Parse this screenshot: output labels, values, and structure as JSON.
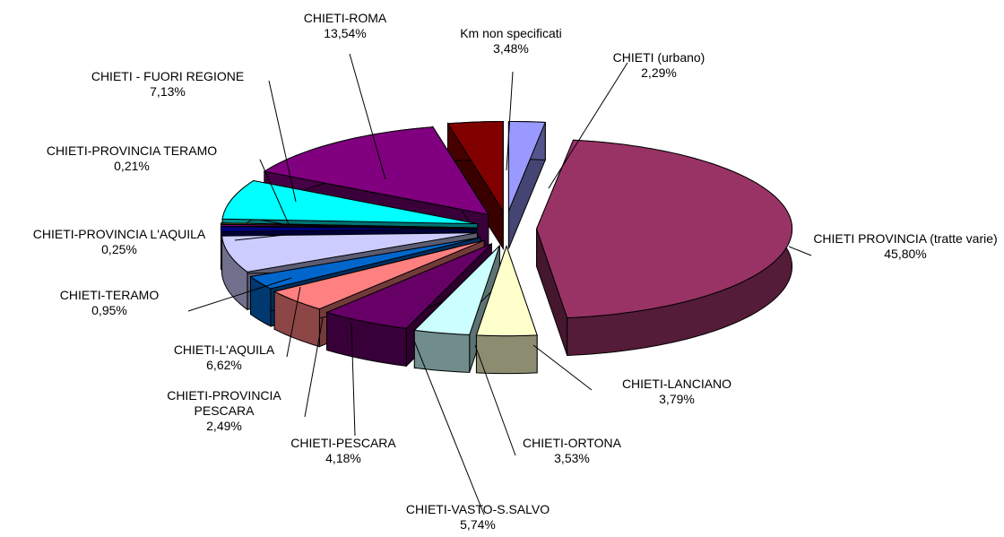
{
  "chart_data": {
    "type": "pie3d",
    "categories": [
      "CHIETI (urbano)",
      "CHIETI PROVINCIA (tratte varie)",
      "CHIETI-LANCIANO",
      "CHIETI-ORTONA",
      "CHIETI-VASTO-S.SALVO",
      "CHIETI-PESCARA",
      "CHIETI-PROVINCIA PESCARA",
      "CHIETI-L'AQUILA",
      "CHIETI-TERAMO",
      "CHIETI-PROVINCIA L'AQUILA",
      "CHIETI-PROVINCIA TERAMO",
      "CHIETI - FUORI REGIONE",
      "CHIETI-ROMA",
      "Km non specificati"
    ],
    "values": [
      2.29,
      45.8,
      3.79,
      3.53,
      5.74,
      4.18,
      2.49,
      6.62,
      0.95,
      0.25,
      0.21,
      7.13,
      13.54,
      3.48
    ],
    "value_labels": [
      "2,29%",
      "45,80%",
      "3,79%",
      "3,53%",
      "5,74%",
      "4,18%",
      "2,49%",
      "6,62%",
      "0,95%",
      "0,25%",
      "0,21%",
      "7,13%",
      "13,54%",
      "3,48%"
    ],
    "colors": [
      "#9999ff",
      "#993366",
      "#ffffcc",
      "#ccffff",
      "#660066",
      "#ff8080",
      "#0066cc",
      "#ccccff",
      "#000080",
      "#ff00ff",
      "#ffff00",
      "#00ffff",
      "#800080",
      "#800000"
    ]
  }
}
